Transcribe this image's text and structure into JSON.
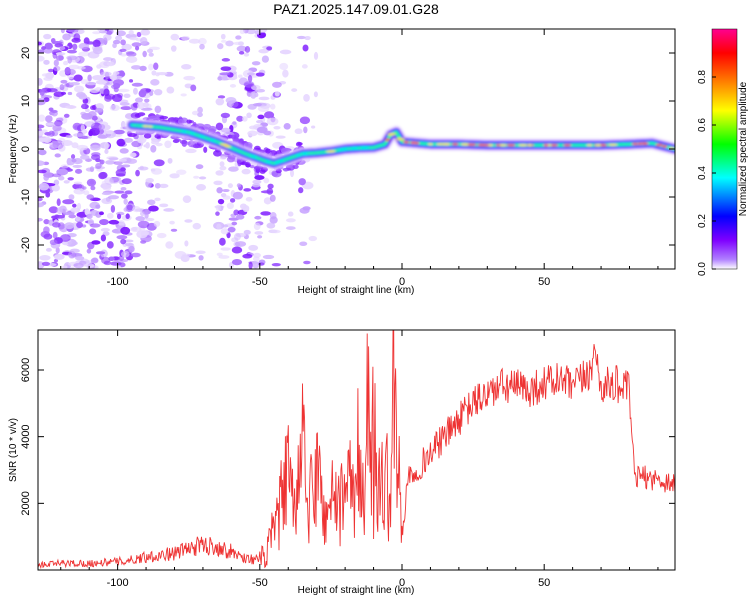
{
  "chart_data": [
    {
      "type": "heatmap",
      "panel": "spectrogram",
      "title": "PAZ1.2025.147.09.01.G28",
      "xlabel": "Height of straight line (km)",
      "ylabel": "Frequency (Hz)",
      "xlim": [
        -128,
        96
      ],
      "ylim": [
        -25,
        25
      ],
      "xticks": [
        -100,
        -50,
        0,
        50
      ],
      "xtick_labels": [
        "-100",
        "-50",
        "0",
        "50"
      ],
      "yticks": [
        -20,
        -10,
        0,
        10,
        20
      ],
      "ytick_labels": [
        "-20",
        "-10",
        "0",
        "10",
        "20"
      ],
      "colorbar": {
        "label": "Normalized spectral amplitude",
        "range": [
          0,
          1
        ],
        "ticks": [
          0.0,
          0.2,
          0.4,
          0.6,
          0.8
        ],
        "tick_labels": [
          "0.0",
          "0.2",
          "0.4",
          "0.6",
          "0.8"
        ],
        "colors": [
          "#ffffff",
          "#7f00ff",
          "#0000ff",
          "#00ffff",
          "#00ff00",
          "#ffff00",
          "#ff7f00",
          "#ff0000",
          "#ff0080"
        ]
      },
      "ridge": {
        "x": [
          -95,
          -85,
          -75,
          -65,
          -55,
          -48,
          -45,
          -40,
          -35,
          -30,
          -25,
          -20,
          -15,
          -10,
          -6,
          -4,
          -2,
          0,
          10,
          20,
          30,
          40,
          50,
          60,
          70,
          80,
          88,
          96
        ],
        "freq": [
          5,
          4.5,
          3.5,
          1.5,
          -1,
          -2.5,
          -3,
          -2,
          -1,
          -0.8,
          -0.5,
          0,
          0.2,
          0.3,
          1,
          3,
          3.5,
          1.5,
          1,
          1,
          0.8,
          0.8,
          0.8,
          0.8,
          0.8,
          1,
          1.2,
          0
        ]
      }
    },
    {
      "type": "line",
      "panel": "snr",
      "xlabel": "Height of straight line (km)",
      "ylabel": "SNR (10 * v/v)",
      "xlim": [
        -128,
        96
      ],
      "ylim": [
        0,
        7200
      ],
      "xticks": [
        -100,
        -50,
        0,
        50
      ],
      "xtick_labels": [
        "-100",
        "-50",
        "0",
        "50"
      ],
      "yticks": [
        2000,
        4000,
        6000
      ],
      "ytick_labels": [
        "2000",
        "4000",
        "6000"
      ],
      "line_color": "#ee3333",
      "series": [
        {
          "name": "SNR",
          "x": [
            -128,
            -120,
            -110,
            -100,
            -95,
            -90,
            -85,
            -80,
            -75,
            -70,
            -65,
            -60,
            -55,
            -50,
            -48,
            -45,
            -43,
            -40,
            -38,
            -35,
            -33,
            -30,
            -27,
            -25,
            -22,
            -20,
            -18,
            -16,
            -13,
            -12,
            -10,
            -8,
            -6,
            -4,
            -3,
            -1,
            0,
            2,
            5,
            10,
            15,
            20,
            25,
            30,
            35,
            40,
            45,
            50,
            55,
            60,
            65,
            68,
            70,
            75,
            80,
            81,
            82,
            85,
            90,
            96
          ],
          "y": [
            150,
            200,
            200,
            250,
            300,
            400,
            450,
            500,
            650,
            750,
            700,
            550,
            350,
            300,
            400,
            1200,
            1800,
            3000,
            1500,
            3500,
            1800,
            3000,
            1500,
            2500,
            1500,
            3000,
            2000,
            2500,
            2000,
            5500,
            2500,
            2000,
            3000,
            1800,
            6200,
            2500,
            1000,
            2800,
            3000,
            3500,
            4000,
            4500,
            5000,
            5300,
            5500,
            5500,
            5400,
            5600,
            5700,
            5500,
            5800,
            6500,
            5500,
            5600,
            5400,
            3500,
            2800,
            2800,
            2700,
            2600
          ]
        }
      ]
    }
  ]
}
